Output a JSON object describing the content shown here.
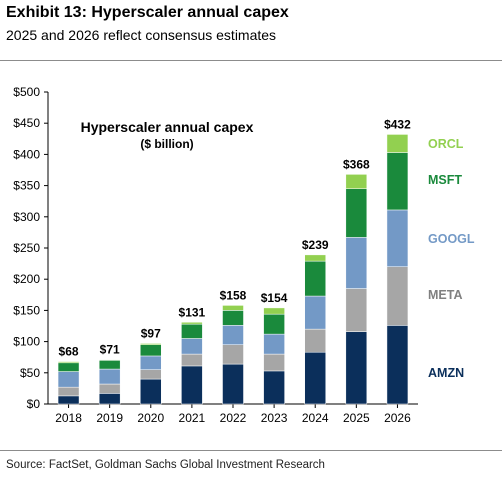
{
  "header": {
    "title": "Exhibit 13: Hyperscaler annual capex",
    "subtitle": "2025 and 2026 reflect consensus estimates"
  },
  "footer": {
    "source": "Source: FactSet, Goldman Sachs Global Investment Research"
  },
  "chart_data": {
    "type": "bar",
    "stacked": true,
    "title": "Hyperscaler annual capex",
    "subtitle": "($ billion)",
    "categories": [
      "2018",
      "2019",
      "2020",
      "2021",
      "2022",
      "2023",
      "2024",
      "2025",
      "2026"
    ],
    "totals_labels": [
      "$68",
      "$71",
      "$97",
      "$131",
      "$158",
      "$154",
      "$239",
      "$368",
      "$432"
    ],
    "ylim": [
      0,
      500
    ],
    "yticks": [
      0,
      50,
      100,
      150,
      200,
      250,
      300,
      350,
      400,
      450,
      500
    ],
    "ytick_labels": [
      "$0",
      "$50",
      "$100",
      "$150",
      "$200",
      "$250",
      "$300",
      "$350",
      "$400",
      "$450",
      "$500"
    ],
    "grid": false,
    "legend_placement": "right (labels beside final bar)",
    "series": [
      {
        "name": "AMZN",
        "color": "#0b2f5b",
        "values": [
          13,
          17,
          40,
          61,
          64,
          53,
          83,
          116,
          126
        ]
      },
      {
        "name": "META",
        "color": "#a6a6a6",
        "values": [
          14,
          15,
          15,
          19,
          31,
          27,
          37,
          69,
          94
        ]
      },
      {
        "name": "GOOGL",
        "color": "#7399c6",
        "values": [
          25,
          24,
          22,
          25,
          31,
          32,
          53,
          82,
          91
        ]
      },
      {
        "name": "MSFT",
        "color": "#1a8a3c",
        "values": [
          14,
          14,
          18,
          23,
          24,
          32,
          56,
          78,
          92
        ]
      },
      {
        "name": "ORCL",
        "color": "#92d050",
        "values": [
          2,
          1,
          2,
          3,
          8,
          10,
          10,
          23,
          29
        ]
      }
    ]
  }
}
